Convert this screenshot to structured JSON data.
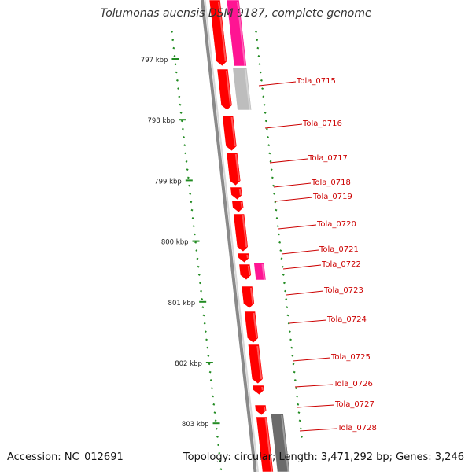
{
  "title": "Tolumonas auensis DSM 9187, complete genome",
  "accession": "Accession: NC_012691",
  "topology": "Topology: circular; Length: 3,471,292 bp; Genes: 3,246",
  "kbp_labels": [
    "797 kbp",
    "798 kbp",
    "799 kbp",
    "800 kbp",
    "801 kbp",
    "802 kbp",
    "803 kbp"
  ],
  "gene_labels": [
    "Tola_0715",
    "Tola_0716",
    "Tola_0717",
    "Tola_0718",
    "Tola_0719",
    "Tola_0720",
    "Tola_0721",
    "Tola_0722",
    "Tola_0723",
    "Tola_0724",
    "Tola_0725",
    "Tola_0726",
    "Tola_0727",
    "Tola_0728"
  ],
  "colors": {
    "cds": "#ff0000",
    "rna": "#ff1493",
    "pseudo": "#bdbdbd",
    "other": "#6b6b6b",
    "backbone": "#8a8a8a",
    "ruler": "#228b22",
    "label": "#cc0000"
  }
}
